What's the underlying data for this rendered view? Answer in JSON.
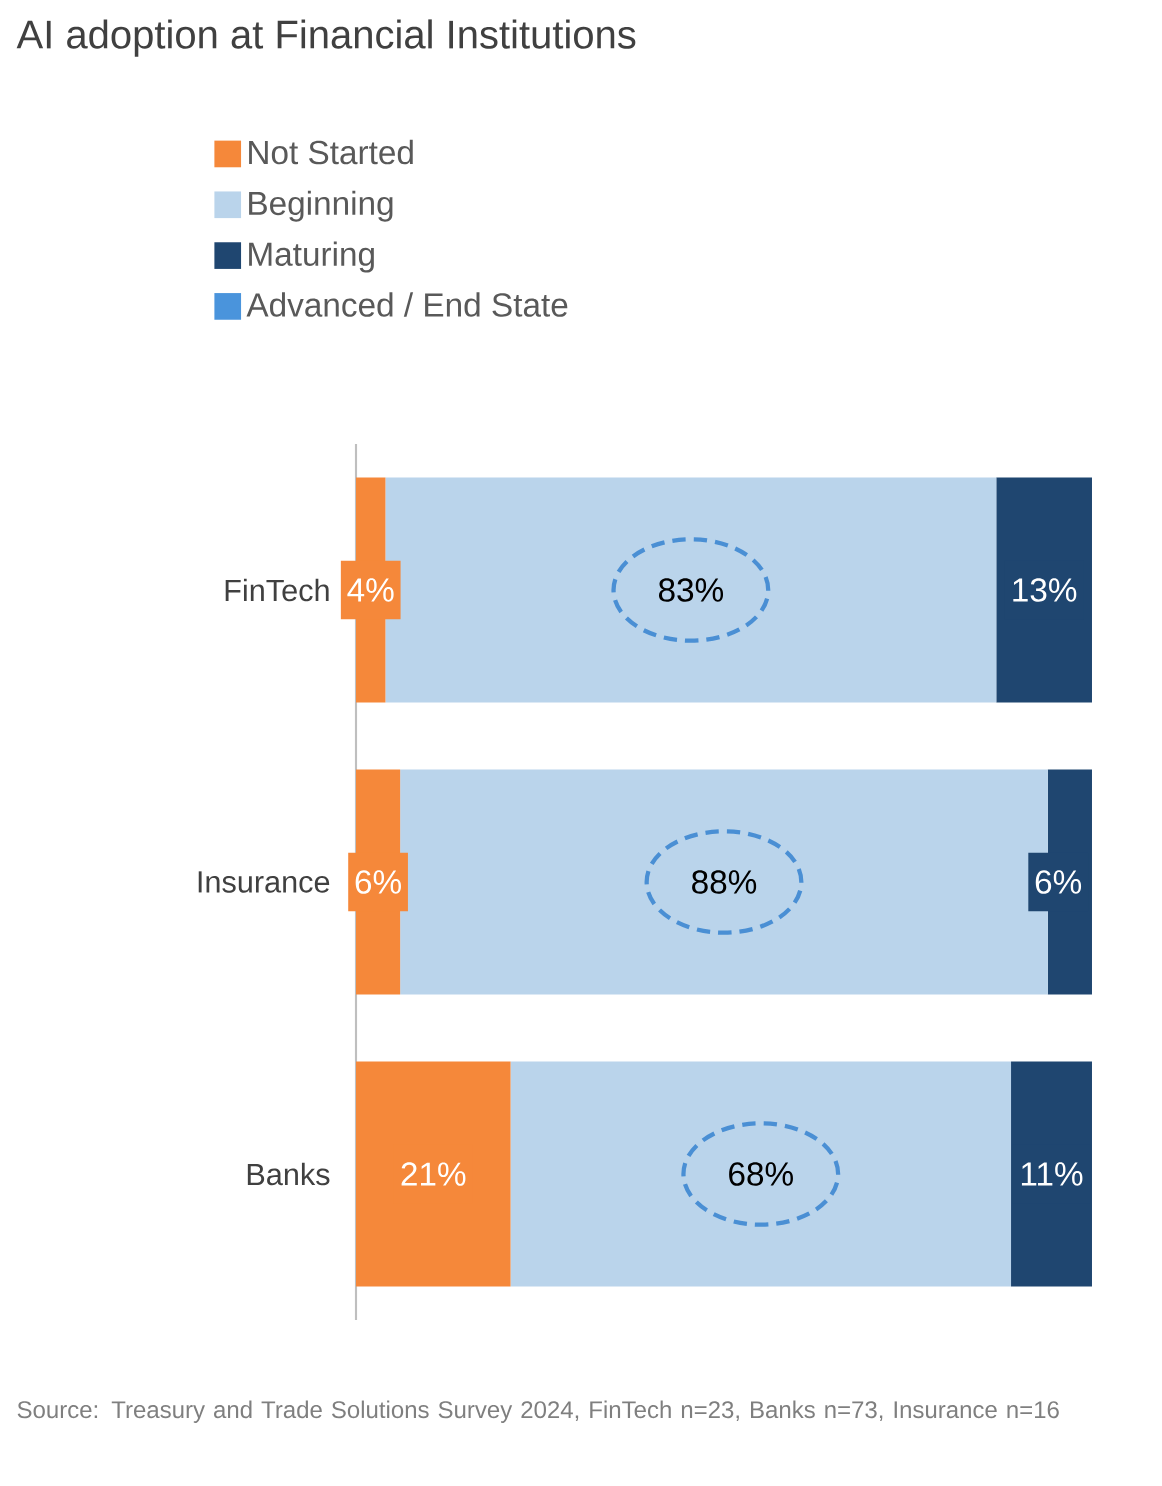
{
  "chart_data": {
    "type": "bar",
    "orientation": "horizontal",
    "stacked": true,
    "title": "AI adoption at Financial Institutions",
    "categories": [
      "FinTech",
      "Insurance",
      "Banks"
    ],
    "xlim": [
      0,
      100
    ],
    "series": [
      {
        "name": "Not Started",
        "color": "#f5883a",
        "values": [
          4,
          6,
          21
        ],
        "value_labels": [
          "4%",
          "6%",
          "21%"
        ]
      },
      {
        "name": "Beginning",
        "color": "#bad4eb",
        "values": [
          83,
          88,
          68
        ],
        "value_labels": [
          "83%",
          "88%",
          "68%"
        ]
      },
      {
        "name": "Maturing",
        "color": "#1f4670",
        "values": [
          13,
          6,
          11
        ],
        "value_labels": [
          "13%",
          "6%",
          "11%"
        ]
      },
      {
        "name": "Advanced / End State",
        "color": "#4a94dc",
        "values": [
          null,
          null,
          null
        ]
      }
    ],
    "legend": "top",
    "annotations": [
      "Source: Treasury and Trade Solutions Survey 2024, FinTech n=23, Banks n=73, Insurance n=16"
    ]
  }
}
